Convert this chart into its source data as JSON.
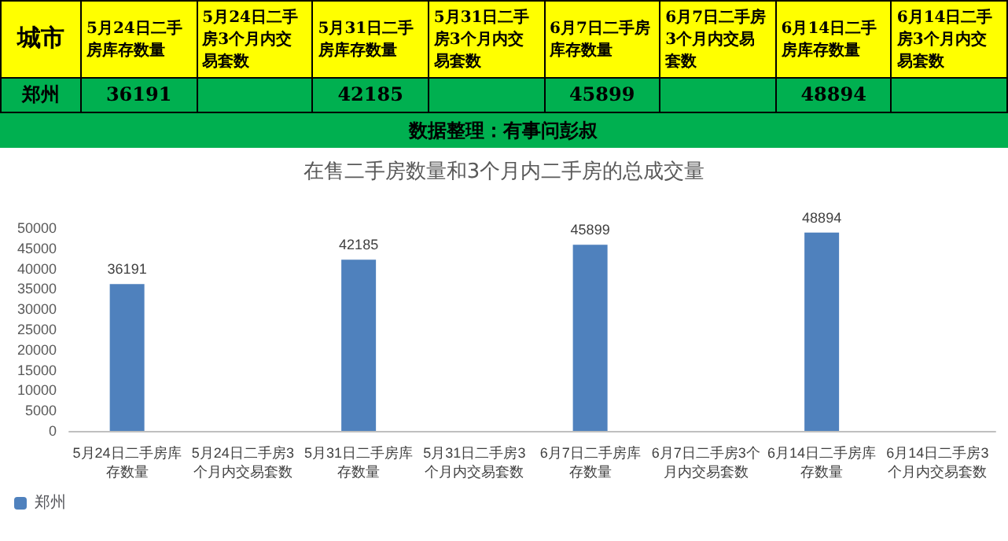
{
  "chart_data": {
    "type": "bar",
    "title": "在售二手房数量和3个月内二手房的总成交量",
    "categories": [
      "5月24日二手房库存数量",
      "5月24日二手房3个月内交易套数",
      "5月31日二手房库存数量",
      "5月31日二手房3个月内交易套数",
      "6月7日二手房库存数量",
      "6月7日二手房3个月内交易套数",
      "6月14日二手房库存数量",
      "6月14日二手房3个月内交易套数"
    ],
    "series": [
      {
        "name": "郑州",
        "color": "#4f81bd",
        "values": [
          36191,
          null,
          42185,
          null,
          45899,
          null,
          48894,
          null
        ],
        "value_labels": [
          "36191",
          null,
          "42185",
          null,
          "45899",
          null,
          "48894",
          null
        ]
      }
    ],
    "ylim": [
      0,
      50000
    ],
    "yticks": [
      0,
      5000,
      10000,
      15000,
      20000,
      25000,
      30000,
      35000,
      40000,
      45000,
      50000
    ],
    "grid": false,
    "legend": "bottom",
    "annotations": [
      "城市",
      "数据整理：有事问彭叔"
    ]
  }
}
